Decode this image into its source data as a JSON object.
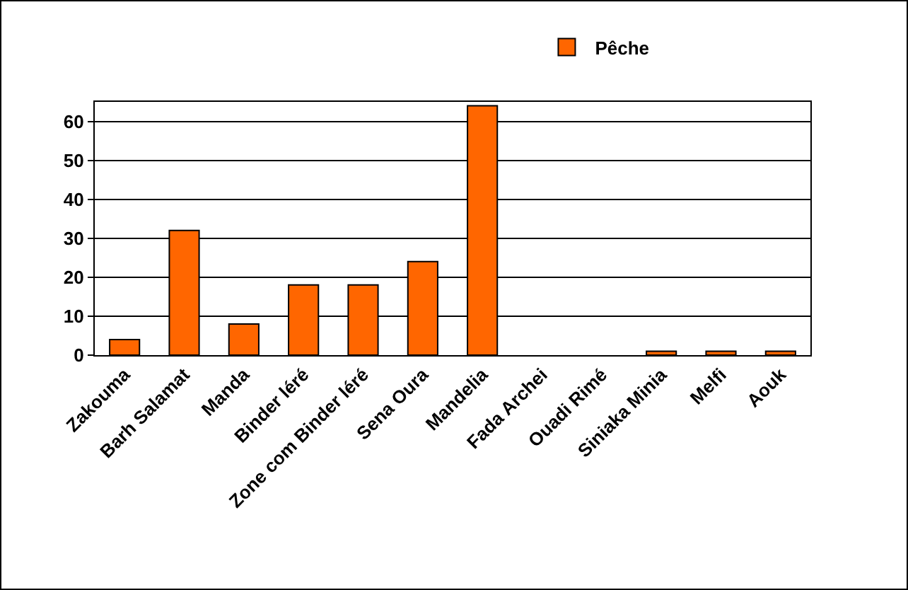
{
  "chart_data": {
    "type": "bar",
    "categories": [
      "Zakouma",
      "Barh Salamat",
      "Manda",
      "Binder léré",
      "Zone com Binder léré",
      "Sena Oura",
      "Mandelia",
      "Fada Archei",
      "Ouadi Rimé",
      "Siniaka Minia",
      "Melfi",
      "Aouk"
    ],
    "series": [
      {
        "name": "Pêche",
        "color": "#ff6600",
        "values": [
          4,
          32,
          8,
          18,
          18,
          24,
          64,
          0,
          0,
          1,
          1,
          1
        ]
      }
    ],
    "ylim": [
      0,
      65
    ],
    "yticks": [
      0,
      10,
      20,
      30,
      40,
      50,
      60
    ],
    "grid": "y",
    "legend": "top right"
  }
}
